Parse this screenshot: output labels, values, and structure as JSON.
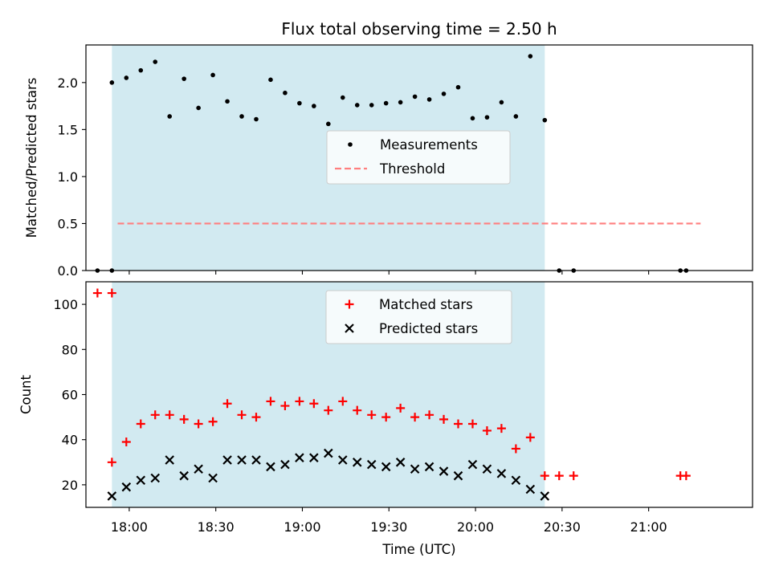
{
  "chart_data": [
    {
      "type": "scatter",
      "title": "Flux total observing time = 2.50 h",
      "xlabel": "",
      "ylabel": "Matched/Predicted stars",
      "ylim": [
        0,
        2.4
      ],
      "yticks": [
        "0.0",
        "0.5",
        "1.0",
        "1.5",
        "2.0"
      ],
      "xlim": [
        "17:45",
        "21:36"
      ],
      "observing_window": [
        "17:54",
        "20:24"
      ],
      "shade_color": "#add8e6",
      "legend": {
        "placement": "center",
        "entries": [
          "Measurements",
          "Threshold"
        ]
      },
      "series": [
        {
          "name": "Measurements",
          "color": "#000000",
          "marker": "dot",
          "x": [
            "17:49",
            "17:54",
            "17:54",
            "17:59",
            "18:04",
            "18:09",
            "18:14",
            "18:19",
            "18:24",
            "18:29",
            "18:34",
            "18:39",
            "18:44",
            "18:49",
            "18:54",
            "18:59",
            "19:04",
            "19:09",
            "19:14",
            "19:19",
            "19:24",
            "19:29",
            "19:34",
            "19:39",
            "19:44",
            "19:49",
            "19:54",
            "19:59",
            "20:04",
            "20:09",
            "20:14",
            "20:19",
            "20:24",
            "20:29",
            "20:34",
            "21:11",
            "21:13"
          ],
          "y": [
            0.0,
            0.0,
            2.0,
            2.05,
            2.13,
            2.22,
            1.64,
            2.04,
            1.73,
            2.08,
            1.8,
            1.64,
            1.61,
            2.03,
            1.89,
            1.78,
            1.75,
            1.56,
            1.84,
            1.76,
            1.76,
            1.78,
            1.79,
            1.85,
            1.82,
            1.88,
            1.95,
            1.62,
            1.63,
            1.79,
            1.64,
            2.28,
            1.6,
            0.0,
            0.0,
            0.0,
            0.0
          ]
        },
        {
          "name": "Threshold",
          "color": "#ff7f7f",
          "line": "dashed",
          "x": [
            "17:56",
            "21:18"
          ],
          "y": [
            0.5,
            0.5
          ]
        }
      ]
    },
    {
      "type": "scatter",
      "title": "",
      "xlabel": "Time (UTC)",
      "ylabel": "Count",
      "ylim": [
        10,
        110
      ],
      "yticks": [
        "20",
        "40",
        "60",
        "80",
        "100"
      ],
      "xlim": [
        "17:45",
        "21:36"
      ],
      "xticks": [
        "18:00",
        "18:30",
        "19:00",
        "19:30",
        "20:00",
        "20:30",
        "21:00"
      ],
      "observing_window": [
        "17:54",
        "20:24"
      ],
      "shade_color": "#add8e6",
      "legend": {
        "placement": "upper center",
        "entries": [
          "Matched stars",
          "Predicted stars"
        ]
      },
      "series": [
        {
          "name": "Matched stars",
          "color": "#ff0000",
          "marker": "plus",
          "x": [
            "17:49",
            "17:54",
            "17:54",
            "17:59",
            "18:04",
            "18:09",
            "18:14",
            "18:19",
            "18:24",
            "18:29",
            "18:34",
            "18:39",
            "18:44",
            "18:49",
            "18:54",
            "18:59",
            "19:04",
            "19:09",
            "19:14",
            "19:19",
            "19:24",
            "19:29",
            "19:34",
            "19:39",
            "19:44",
            "19:49",
            "19:54",
            "19:59",
            "20:04",
            "20:09",
            "20:14",
            "20:19",
            "20:24",
            "20:29",
            "20:34",
            "21:11",
            "21:13"
          ],
          "y": [
            105,
            105,
            30,
            39,
            47,
            51,
            51,
            49,
            47,
            48,
            56,
            51,
            50,
            57,
            55,
            57,
            56,
            53,
            57,
            53,
            51,
            50,
            54,
            50,
            51,
            49,
            47,
            47,
            44,
            45,
            36,
            41,
            24,
            24,
            24,
            24,
            24
          ]
        },
        {
          "name": "Predicted stars",
          "color": "#000000",
          "marker": "x",
          "x": [
            "17:54",
            "17:59",
            "18:04",
            "18:09",
            "18:14",
            "18:19",
            "18:24",
            "18:29",
            "18:34",
            "18:39",
            "18:44",
            "18:49",
            "18:54",
            "18:59",
            "19:04",
            "19:09",
            "19:14",
            "19:19",
            "19:24",
            "19:29",
            "19:34",
            "19:39",
            "19:44",
            "19:49",
            "19:54",
            "19:59",
            "20:04",
            "20:09",
            "20:14",
            "20:19",
            "20:24"
          ],
          "y": [
            15,
            19,
            22,
            23,
            31,
            24,
            27,
            23,
            31,
            31,
            31,
            28,
            29,
            32,
            32,
            34,
            31,
            30,
            29,
            28,
            30,
            27,
            28,
            26,
            24,
            29,
            27,
            25,
            22,
            18,
            15
          ]
        }
      ]
    }
  ]
}
